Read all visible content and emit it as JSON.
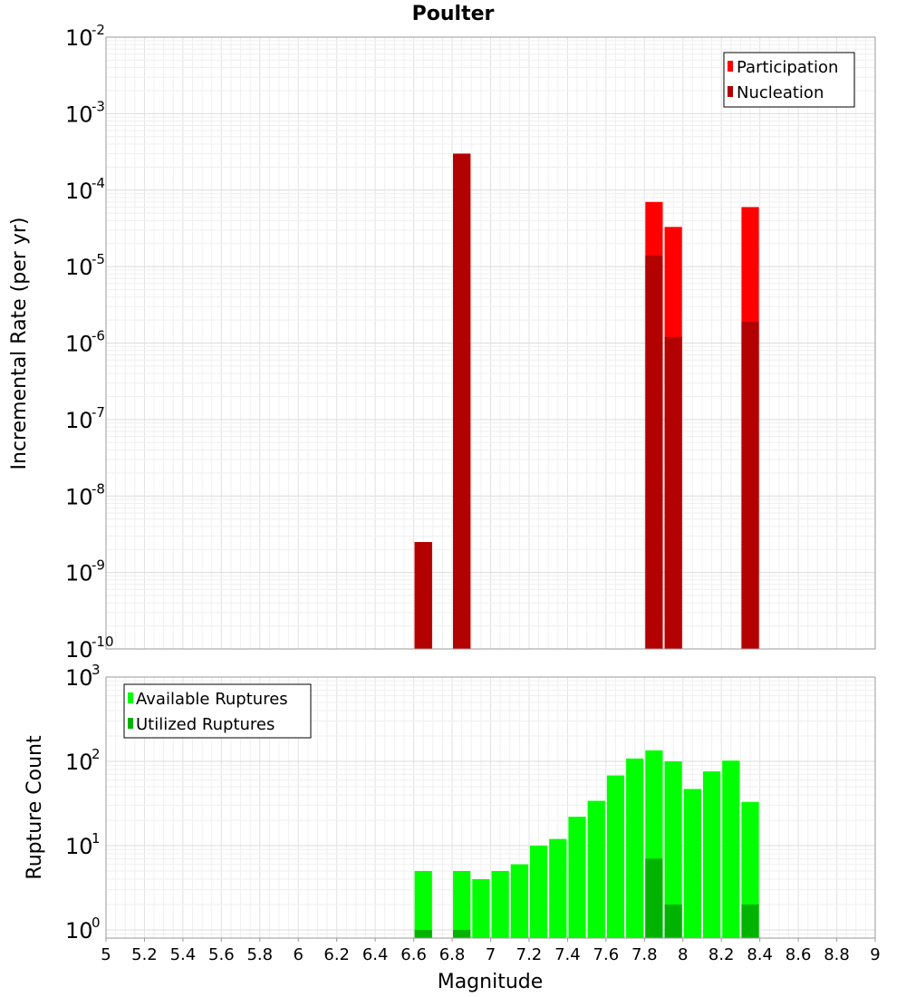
{
  "chart_data": [
    {
      "type": "bar",
      "title": "Poulter",
      "ylabel": "Incremental Rate (per yr)",
      "xlabel": "",
      "xlim": [
        5,
        9
      ],
      "ylim": [
        1e-10,
        0.01
      ],
      "yscale": "log",
      "grid": true,
      "legend_position": "top-right",
      "bin_width": 0.1,
      "series": [
        {
          "name": "Participation",
          "color": "#ff0000",
          "x": [
            6.65,
            6.85,
            7.85,
            7.95,
            8.35
          ],
          "values": [
            2.5e-09,
            0.0003,
            7e-05,
            3.3e-05,
            6e-05
          ]
        },
        {
          "name": "Nucleation",
          "color": "#b30000",
          "x": [
            6.65,
            6.85,
            7.85,
            7.95,
            8.35
          ],
          "values": [
            2.5e-09,
            0.0003,
            1.4e-05,
            1.2e-06,
            1.9e-06
          ]
        }
      ]
    },
    {
      "type": "bar",
      "title": "",
      "ylabel": "Rupture Count",
      "xlabel": "Magnitude",
      "xlim": [
        5,
        9
      ],
      "ylim": [
        0.8,
        1000
      ],
      "yscale": "log",
      "grid": true,
      "legend_position": "top-left",
      "bin_width": 0.1,
      "xticks": [
        "5",
        "5.2",
        "5.4",
        "5.6",
        "5.8",
        "6",
        "6.2",
        "6.4",
        "6.6",
        "6.8",
        "7",
        "7.2",
        "7.4",
        "7.6",
        "7.8",
        "8",
        "8.2",
        "8.4",
        "8.6",
        "8.8",
        "9"
      ],
      "series": [
        {
          "name": "Available Ruptures",
          "color": "#00ff00",
          "x": [
            6.65,
            6.85,
            6.95,
            7.05,
            7.15,
            7.25,
            7.35,
            7.45,
            7.55,
            7.65,
            7.75,
            7.85,
            7.95,
            8.05,
            8.15,
            8.25,
            8.35
          ],
          "values": [
            5,
            5,
            4,
            5,
            6,
            10,
            12,
            22,
            34,
            68,
            108,
            135,
            100,
            47,
            76,
            102,
            33
          ]
        },
        {
          "name": "Utilized Ruptures",
          "color": "#00b300",
          "x": [
            6.65,
            6.85,
            7.85,
            7.95,
            8.35
          ],
          "values": [
            1,
            1,
            7,
            2,
            2
          ]
        }
      ]
    }
  ]
}
